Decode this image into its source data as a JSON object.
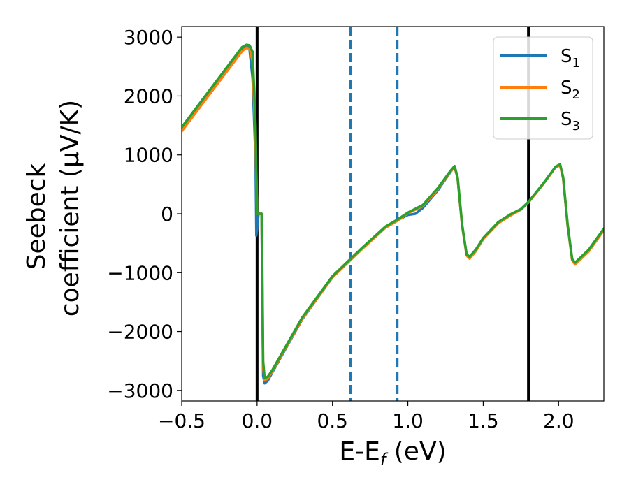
{
  "chart_data": {
    "type": "line",
    "xlabel": "E-E_f (eV)",
    "ylabel_line1": "Seebeck",
    "ylabel_line2": "coefficient  (μV/K)",
    "xlim": [
      -0.5,
      2.3
    ],
    "ylim": [
      -3180,
      3180
    ],
    "x_ticks": [
      -0.5,
      0.0,
      0.5,
      1.0,
      1.5,
      2.0
    ],
    "x_tick_labels": [
      "−0.5",
      "0.0",
      "0.5",
      "1.0",
      "1.5",
      "2.0"
    ],
    "y_ticks": [
      -3000,
      -2000,
      -1000,
      0,
      1000,
      2000,
      3000
    ],
    "y_tick_labels": [
      "−3000",
      "−2000",
      "−1000",
      "0",
      "1000",
      "2000",
      "3000"
    ],
    "grid": false,
    "legend_position": "top-right",
    "vertical_lines": [
      {
        "x": 0.0,
        "style": "solid",
        "color": "#000000"
      },
      {
        "x": 1.8,
        "style": "solid",
        "color": "#000000"
      },
      {
        "x": 0.62,
        "style": "dashed",
        "color": "#1f77b4"
      },
      {
        "x": 0.93,
        "style": "dashed",
        "color": "#1f77b4"
      }
    ],
    "series": [
      {
        "name": "S1",
        "name_base": "S",
        "name_sub": "1",
        "color": "#1f77b4",
        "x": [
          -0.5,
          -0.3,
          -0.1,
          -0.07,
          -0.05,
          -0.03,
          -0.01,
          -0.005,
          0.01,
          0.02,
          0.03,
          0.035,
          0.04,
          0.05,
          0.07,
          0.1,
          0.3,
          0.5,
          0.7,
          0.85,
          0.93,
          1.0,
          1.05,
          1.1,
          1.2,
          1.28,
          1.31,
          1.33,
          1.36,
          1.39,
          1.41,
          1.45,
          1.5,
          1.6,
          1.68,
          1.75,
          1.8,
          1.9,
          1.98,
          2.01,
          2.03,
          2.06,
          2.09,
          2.11,
          2.2,
          2.3
        ],
        "y": [
          1450,
          2130,
          2810,
          2860,
          2780,
          2300,
          900,
          -370,
          0,
          0,
          0,
          -1500,
          -2750,
          -2880,
          -2840,
          -2700,
          -1790,
          -1080,
          -580,
          -230,
          -110,
          -20,
          0,
          100,
          400,
          700,
          800,
          600,
          -200,
          -700,
          -740,
          -620,
          -420,
          -150,
          -20,
          80,
          200,
          520,
          800,
          830,
          600,
          -200,
          -780,
          -840,
          -620,
          -260
        ]
      },
      {
        "name": "S2",
        "name_base": "S",
        "name_sub": "2",
        "color": "#ff7f0e",
        "x": [
          -0.5,
          -0.3,
          -0.1,
          -0.07,
          -0.05,
          -0.03,
          -0.01,
          0.0,
          0.01,
          0.02,
          0.03,
          0.035,
          0.04,
          0.05,
          0.07,
          0.1,
          0.3,
          0.5,
          0.7,
          0.85,
          0.93,
          1.0,
          1.1,
          1.2,
          1.28,
          1.31,
          1.33,
          1.36,
          1.39,
          1.41,
          1.45,
          1.5,
          1.6,
          1.68,
          1.75,
          1.8,
          1.9,
          1.98,
          2.01,
          2.03,
          2.06,
          2.09,
          2.11,
          2.2,
          2.3
        ],
        "y": [
          1400,
          2080,
          2760,
          2820,
          2800,
          2600,
          1200,
          0,
          0,
          0,
          0,
          -1200,
          -2600,
          -2830,
          -2800,
          -2680,
          -1780,
          -1080,
          -590,
          -240,
          -120,
          10,
          130,
          420,
          710,
          800,
          600,
          -200,
          -710,
          -760,
          -640,
          -430,
          -160,
          -30,
          70,
          190,
          510,
          790,
          820,
          600,
          -200,
          -790,
          -860,
          -640,
          -280
        ]
      },
      {
        "name": "S3",
        "name_base": "S",
        "name_sub": "3",
        "color": "#2ca02c",
        "x": [
          -0.5,
          -0.3,
          -0.1,
          -0.07,
          -0.05,
          -0.03,
          -0.01,
          0.0,
          0.01,
          0.02,
          0.03,
          0.035,
          0.04,
          0.05,
          0.07,
          0.1,
          0.3,
          0.5,
          0.7,
          0.85,
          0.93,
          1.0,
          1.1,
          1.2,
          1.28,
          1.31,
          1.33,
          1.36,
          1.39,
          1.41,
          1.45,
          1.5,
          1.6,
          1.68,
          1.75,
          1.8,
          1.9,
          1.98,
          2.01,
          2.03,
          2.06,
          2.09,
          2.11,
          2.2,
          2.3
        ],
        "y": [
          1470,
          2150,
          2830,
          2870,
          2860,
          2750,
          1500,
          0,
          0,
          0,
          0,
          -1000,
          -2500,
          -2790,
          -2770,
          -2660,
          -1760,
          -1060,
          -570,
          -220,
          -100,
          20,
          150,
          440,
          720,
          810,
          620,
          -180,
          -690,
          -730,
          -610,
          -410,
          -140,
          -10,
          80,
          200,
          520,
          800,
          840,
          620,
          -180,
          -770,
          -830,
          -610,
          -250
        ]
      }
    ]
  }
}
